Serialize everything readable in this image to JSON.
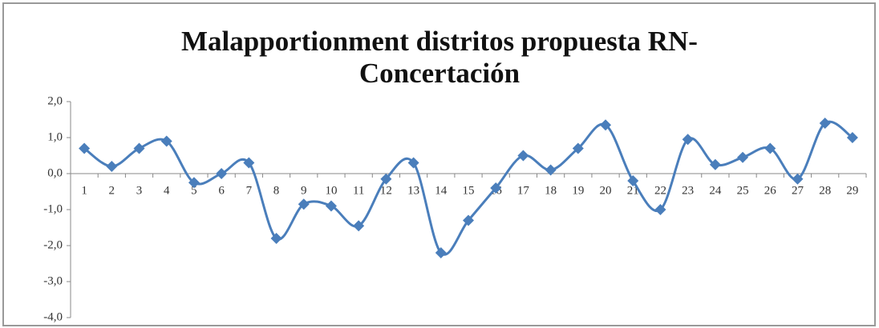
{
  "chart_data": {
    "type": "line",
    "title": "Malapportionment distritos propuesta RN-Concertación",
    "categories": [
      "1",
      "2",
      "3",
      "4",
      "5",
      "6",
      "7",
      "8",
      "9",
      "10",
      "11",
      "12",
      "13",
      "14",
      "15",
      "16",
      "17",
      "18",
      "19",
      "20",
      "21",
      "22",
      "23",
      "24",
      "25",
      "26",
      "27",
      "28",
      "29"
    ],
    "series": [
      {
        "color": "#4a7ebb",
        "values": [
          0.7,
          0.2,
          0.7,
          0.9,
          -0.25,
          0.0,
          0.3,
          -1.8,
          -0.85,
          -0.9,
          -1.45,
          -0.15,
          0.3,
          -2.2,
          -1.3,
          -0.4,
          0.5,
          0.1,
          0.7,
          1.35,
          -0.2,
          -1.0,
          0.95,
          0.25,
          0.45,
          0.7,
          -0.15,
          1.4,
          1.0
        ]
      }
    ],
    "ylim": [
      -4,
      2
    ],
    "yticks": [
      {
        "value": -4,
        "label": "-4,0"
      },
      {
        "value": -3,
        "label": "-3,0"
      },
      {
        "value": -2,
        "label": "-2,0"
      },
      {
        "value": -1,
        "label": "-1,0"
      },
      {
        "value": 0,
        "label": "0,0"
      },
      {
        "value": 1,
        "label": "1,0"
      },
      {
        "value": 2,
        "label": "2,0"
      }
    ],
    "smooth": true,
    "markers": "diamond"
  }
}
